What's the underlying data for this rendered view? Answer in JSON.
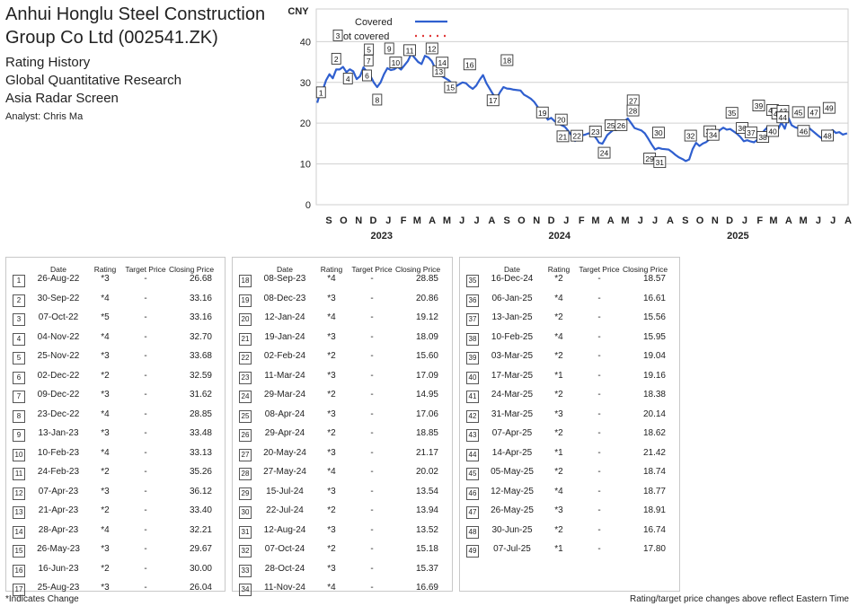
{
  "header": {
    "title_line1": "Anhui Honglu Steel Construction",
    "title_line2": "Group Co Ltd (002541.ZK)",
    "sub1": "Rating History",
    "sub2": "Global Quantitative Research",
    "sub3": "Asia Radar Screen",
    "analyst": "Analyst: Chris Ma"
  },
  "table_headers": {
    "date": "Date",
    "rating": "Rating",
    "target": "Target Price",
    "close": "Closing Price"
  },
  "footer": {
    "left": "*Indicates Change",
    "right": "Rating/target price changes above reflect Eastern Time"
  },
  "chart_data": {
    "type": "line",
    "ylabel": "CNY",
    "ylim": [
      0,
      48
    ],
    "yticks": [
      0,
      10,
      20,
      30,
      40
    ],
    "xlim": [
      "2022-08-20",
      "2025-08-15"
    ],
    "month_labels": [
      "S",
      "O",
      "N",
      "D",
      "J",
      "F",
      "M",
      "A",
      "M",
      "J",
      "J",
      "A",
      "S",
      "O",
      "N",
      "D",
      "J",
      "F",
      "M",
      "A",
      "M",
      "J",
      "J",
      "A",
      "S",
      "O",
      "N",
      "D",
      "J",
      "F",
      "M",
      "A",
      "M",
      "J",
      "J",
      "A"
    ],
    "year_labels": [
      "2023",
      "2024",
      "2025"
    ],
    "grid": true,
    "legend": {
      "position": "top-left",
      "covered": "Covered",
      "not_covered": "Not covered"
    },
    "colors": {
      "covered": "#2f5fcf",
      "not_covered": "#e03a3a"
    },
    "series": [
      {
        "points": [
          [
            "2022-08-22",
            25.0
          ],
          [
            "2022-08-26",
            26.68
          ],
          [
            "2022-09-02",
            28.0
          ],
          [
            "2022-09-09",
            30.5
          ],
          [
            "2022-09-16",
            32.0
          ],
          [
            "2022-09-23",
            31.0
          ],
          [
            "2022-09-30",
            33.16
          ],
          [
            "2022-10-07",
            33.16
          ],
          [
            "2022-10-14",
            33.8
          ],
          [
            "2022-10-21",
            32.5
          ],
          [
            "2022-10-28",
            33.2
          ],
          [
            "2022-11-04",
            32.7
          ],
          [
            "2022-11-11",
            30.8
          ],
          [
            "2022-11-18",
            31.5
          ],
          [
            "2022-11-25",
            33.68
          ],
          [
            "2022-12-02",
            32.59
          ],
          [
            "2022-12-09",
            31.62
          ],
          [
            "2022-12-16",
            30.0
          ],
          [
            "2022-12-23",
            28.85
          ],
          [
            "2022-12-30",
            30.0
          ],
          [
            "2023-01-06",
            32.0
          ],
          [
            "2023-01-13",
            33.48
          ],
          [
            "2023-01-20",
            33.0
          ],
          [
            "2023-01-27",
            33.2
          ],
          [
            "2023-02-03",
            33.8
          ],
          [
            "2023-02-10",
            33.13
          ],
          [
            "2023-02-17",
            34.2
          ],
          [
            "2023-02-24",
            35.26
          ],
          [
            "2023-03-03",
            37.0
          ],
          [
            "2023-03-10",
            36.0
          ],
          [
            "2023-03-17",
            35.0
          ],
          [
            "2023-03-24",
            34.5
          ],
          [
            "2023-03-31",
            36.5
          ],
          [
            "2023-04-07",
            36.12
          ],
          [
            "2023-04-14",
            35.2
          ],
          [
            "2023-04-21",
            33.4
          ],
          [
            "2023-04-28",
            32.21
          ],
          [
            "2023-05-05",
            31.5
          ],
          [
            "2023-05-12",
            31.0
          ],
          [
            "2023-05-19",
            30.5
          ],
          [
            "2023-05-26",
            29.67
          ],
          [
            "2023-06-02",
            29.0
          ],
          [
            "2023-06-09",
            29.5
          ],
          [
            "2023-06-16",
            30.0
          ],
          [
            "2023-06-23",
            29.8
          ],
          [
            "2023-06-30",
            29.0
          ],
          [
            "2023-07-07",
            28.4
          ],
          [
            "2023-07-14",
            29.2
          ],
          [
            "2023-07-21",
            30.6
          ],
          [
            "2023-07-28",
            31.8
          ],
          [
            "2023-08-04",
            29.8
          ],
          [
            "2023-08-11",
            28.4
          ],
          [
            "2023-08-18",
            27.0
          ],
          [
            "2023-08-25",
            26.04
          ],
          [
            "2023-09-01",
            27.6
          ],
          [
            "2023-09-08",
            28.85
          ],
          [
            "2023-09-15",
            28.5
          ],
          [
            "2023-09-22",
            28.4
          ],
          [
            "2023-09-29",
            28.2
          ],
          [
            "2023-10-13",
            28.0
          ],
          [
            "2023-10-20",
            27.0
          ],
          [
            "2023-10-27",
            26.5
          ],
          [
            "2023-11-03",
            26.0
          ],
          [
            "2023-11-10",
            25.2
          ],
          [
            "2023-11-17",
            24.0
          ],
          [
            "2023-11-24",
            23.2
          ],
          [
            "2023-12-01",
            22.5
          ],
          [
            "2023-12-08",
            20.86
          ],
          [
            "2023-12-15",
            21.3
          ],
          [
            "2023-12-22",
            20.5
          ],
          [
            "2023-12-29",
            20.0
          ],
          [
            "2024-01-05",
            19.5
          ],
          [
            "2024-01-12",
            19.12
          ],
          [
            "2024-01-19",
            18.09
          ],
          [
            "2024-01-26",
            17.0
          ],
          [
            "2024-02-02",
            15.6
          ],
          [
            "2024-02-09",
            16.8
          ],
          [
            "2024-02-23",
            17.2
          ],
          [
            "2024-03-01",
            17.5
          ],
          [
            "2024-03-11",
            17.09
          ],
          [
            "2024-03-18",
            16.0
          ],
          [
            "2024-03-22",
            15.2
          ],
          [
            "2024-03-29",
            14.95
          ],
          [
            "2024-04-03",
            16.0
          ],
          [
            "2024-04-08",
            17.06
          ],
          [
            "2024-04-15",
            17.8
          ],
          [
            "2024-04-22",
            18.5
          ],
          [
            "2024-04-29",
            18.85
          ],
          [
            "2024-05-06",
            19.6
          ],
          [
            "2024-05-13",
            20.4
          ],
          [
            "2024-05-20",
            21.17
          ],
          [
            "2024-05-27",
            20.02
          ],
          [
            "2024-06-03",
            18.8
          ],
          [
            "2024-06-10",
            18.5
          ],
          [
            "2024-06-17",
            18.2
          ],
          [
            "2024-06-24",
            17.5
          ],
          [
            "2024-07-01",
            16.2
          ],
          [
            "2024-07-08",
            14.8
          ],
          [
            "2024-07-15",
            13.54
          ],
          [
            "2024-07-22",
            13.94
          ],
          [
            "2024-07-29",
            13.7
          ],
          [
            "2024-08-05",
            13.6
          ],
          [
            "2024-08-12",
            13.52
          ],
          [
            "2024-08-19",
            12.9
          ],
          [
            "2024-08-26",
            12.2
          ],
          [
            "2024-09-02",
            11.6
          ],
          [
            "2024-09-09",
            11.2
          ],
          [
            "2024-09-16",
            10.7
          ],
          [
            "2024-09-23",
            11.1
          ],
          [
            "2024-09-30",
            13.6
          ],
          [
            "2024-10-07",
            15.18
          ],
          [
            "2024-10-14",
            14.4
          ],
          [
            "2024-10-21",
            15.0
          ],
          [
            "2024-10-28",
            15.37
          ],
          [
            "2024-11-04",
            16.1
          ],
          [
            "2024-11-11",
            16.69
          ],
          [
            "2024-11-18",
            17.4
          ],
          [
            "2024-11-25",
            18.3
          ],
          [
            "2024-12-02",
            18.9
          ],
          [
            "2024-12-09",
            18.4
          ],
          [
            "2024-12-16",
            18.57
          ],
          [
            "2024-12-23",
            18.0
          ],
          [
            "2024-12-30",
            17.4
          ],
          [
            "2025-01-06",
            16.61
          ],
          [
            "2025-01-13",
            15.56
          ],
          [
            "2025-01-20",
            15.8
          ],
          [
            "2025-01-27",
            15.5
          ],
          [
            "2025-02-03",
            15.3
          ],
          [
            "2025-02-10",
            15.95
          ],
          [
            "2025-02-17",
            17.0
          ],
          [
            "2025-02-24",
            18.2
          ],
          [
            "2025-03-03",
            19.04
          ],
          [
            "2025-03-10",
            18.7
          ],
          [
            "2025-03-17",
            19.16
          ],
          [
            "2025-03-24",
            18.38
          ],
          [
            "2025-03-31",
            20.14
          ],
          [
            "2025-04-07",
            18.62
          ],
          [
            "2025-04-14",
            21.42
          ],
          [
            "2025-04-21",
            19.5
          ],
          [
            "2025-04-28",
            19.0
          ],
          [
            "2025-05-05",
            18.74
          ],
          [
            "2025-05-12",
            18.77
          ],
          [
            "2025-05-19",
            19.2
          ],
          [
            "2025-05-26",
            18.91
          ],
          [
            "2025-06-02",
            18.2
          ],
          [
            "2025-06-09",
            17.5
          ],
          [
            "2025-06-16",
            16.8
          ],
          [
            "2025-06-23",
            16.2
          ],
          [
            "2025-06-30",
            16.74
          ],
          [
            "2025-07-07",
            17.8
          ],
          [
            "2025-07-14",
            18.3
          ],
          [
            "2025-07-21",
            17.6
          ],
          [
            "2025-07-28",
            17.8
          ],
          [
            "2025-08-04",
            17.2
          ],
          [
            "2025-08-13",
            17.5
          ]
        ]
      }
    ]
  },
  "ratings": [
    {
      "n": "1",
      "date": "26-Aug-22",
      "rating": "*3",
      "target": "-",
      "close": "26.68"
    },
    {
      "n": "2",
      "date": "30-Sep-22",
      "rating": "*4",
      "target": "-",
      "close": "33.16"
    },
    {
      "n": "3",
      "date": "07-Oct-22",
      "rating": "*5",
      "target": "-",
      "close": "33.16"
    },
    {
      "n": "4",
      "date": "04-Nov-22",
      "rating": "*4",
      "target": "-",
      "close": "32.70"
    },
    {
      "n": "5",
      "date": "25-Nov-22",
      "rating": "*3",
      "target": "-",
      "close": "33.68"
    },
    {
      "n": "6",
      "date": "02-Dec-22",
      "rating": "*2",
      "target": "-",
      "close": "32.59"
    },
    {
      "n": "7",
      "date": "09-Dec-22",
      "rating": "*3",
      "target": "-",
      "close": "31.62"
    },
    {
      "n": "8",
      "date": "23-Dec-22",
      "rating": "*4",
      "target": "-",
      "close": "28.85"
    },
    {
      "n": "9",
      "date": "13-Jan-23",
      "rating": "*3",
      "target": "-",
      "close": "33.48"
    },
    {
      "n": "10",
      "date": "10-Feb-23",
      "rating": "*4",
      "target": "-",
      "close": "33.13"
    },
    {
      "n": "11",
      "date": "24-Feb-23",
      "rating": "*2",
      "target": "-",
      "close": "35.26"
    },
    {
      "n": "12",
      "date": "07-Apr-23",
      "rating": "*3",
      "target": "-",
      "close": "36.12"
    },
    {
      "n": "13",
      "date": "21-Apr-23",
      "rating": "*2",
      "target": "-",
      "close": "33.40"
    },
    {
      "n": "14",
      "date": "28-Apr-23",
      "rating": "*4",
      "target": "-",
      "close": "32.21"
    },
    {
      "n": "15",
      "date": "26-May-23",
      "rating": "*3",
      "target": "-",
      "close": "29.67"
    },
    {
      "n": "16",
      "date": "16-Jun-23",
      "rating": "*2",
      "target": "-",
      "close": "30.00"
    },
    {
      "n": "17",
      "date": "25-Aug-23",
      "rating": "*3",
      "target": "-",
      "close": "26.04"
    },
    {
      "n": "18",
      "date": "08-Sep-23",
      "rating": "*4",
      "target": "-",
      "close": "28.85"
    },
    {
      "n": "19",
      "date": "08-Dec-23",
      "rating": "*3",
      "target": "-",
      "close": "20.86"
    },
    {
      "n": "20",
      "date": "12-Jan-24",
      "rating": "*4",
      "target": "-",
      "close": "19.12"
    },
    {
      "n": "21",
      "date": "19-Jan-24",
      "rating": "*3",
      "target": "-",
      "close": "18.09"
    },
    {
      "n": "22",
      "date": "02-Feb-24",
      "rating": "*2",
      "target": "-",
      "close": "15.60"
    },
    {
      "n": "23",
      "date": "11-Mar-24",
      "rating": "*3",
      "target": "-",
      "close": "17.09"
    },
    {
      "n": "24",
      "date": "29-Mar-24",
      "rating": "*2",
      "target": "-",
      "close": "14.95"
    },
    {
      "n": "25",
      "date": "08-Apr-24",
      "rating": "*3",
      "target": "-",
      "close": "17.06"
    },
    {
      "n": "26",
      "date": "29-Apr-24",
      "rating": "*2",
      "target": "-",
      "close": "18.85"
    },
    {
      "n": "27",
      "date": "20-May-24",
      "rating": "*3",
      "target": "-",
      "close": "21.17"
    },
    {
      "n": "28",
      "date": "27-May-24",
      "rating": "*4",
      "target": "-",
      "close": "20.02"
    },
    {
      "n": "29",
      "date": "15-Jul-24",
      "rating": "*3",
      "target": "-",
      "close": "13.54"
    },
    {
      "n": "30",
      "date": "22-Jul-24",
      "rating": "*2",
      "target": "-",
      "close": "13.94"
    },
    {
      "n": "31",
      "date": "12-Aug-24",
      "rating": "*3",
      "target": "-",
      "close": "13.52"
    },
    {
      "n": "32",
      "date": "07-Oct-24",
      "rating": "*2",
      "target": "-",
      "close": "15.18"
    },
    {
      "n": "33",
      "date": "28-Oct-24",
      "rating": "*3",
      "target": "-",
      "close": "15.37"
    },
    {
      "n": "34",
      "date": "11-Nov-24",
      "rating": "*4",
      "target": "-",
      "close": "16.69"
    },
    {
      "n": "35",
      "date": "16-Dec-24",
      "rating": "*2",
      "target": "-",
      "close": "18.57"
    },
    {
      "n": "36",
      "date": "06-Jan-25",
      "rating": "*4",
      "target": "-",
      "close": "16.61"
    },
    {
      "n": "37",
      "date": "13-Jan-25",
      "rating": "*2",
      "target": "-",
      "close": "15.56"
    },
    {
      "n": "38",
      "date": "10-Feb-25",
      "rating": "*4",
      "target": "-",
      "close": "15.95"
    },
    {
      "n": "39",
      "date": "03-Mar-25",
      "rating": "*2",
      "target": "-",
      "close": "19.04"
    },
    {
      "n": "40",
      "date": "17-Mar-25",
      "rating": "*1",
      "target": "-",
      "close": "19.16"
    },
    {
      "n": "41",
      "date": "24-Mar-25",
      "rating": "*2",
      "target": "-",
      "close": "18.38"
    },
    {
      "n": "42",
      "date": "31-Mar-25",
      "rating": "*3",
      "target": "-",
      "close": "20.14"
    },
    {
      "n": "43",
      "date": "07-Apr-25",
      "rating": "*2",
      "target": "-",
      "close": "18.62"
    },
    {
      "n": "44",
      "date": "14-Apr-25",
      "rating": "*1",
      "target": "-",
      "close": "21.42"
    },
    {
      "n": "45",
      "date": "05-May-25",
      "rating": "*2",
      "target": "-",
      "close": "18.74"
    },
    {
      "n": "46",
      "date": "12-May-25",
      "rating": "*4",
      "target": "-",
      "close": "18.77"
    },
    {
      "n": "47",
      "date": "26-May-25",
      "rating": "*3",
      "target": "-",
      "close": "18.91"
    },
    {
      "n": "48",
      "date": "30-Jun-25",
      "rating": "*2",
      "target": "-",
      "close": "16.74"
    },
    {
      "n": "49",
      "date": "07-Jul-25",
      "rating": "*1",
      "target": "-",
      "close": "17.80"
    }
  ]
}
